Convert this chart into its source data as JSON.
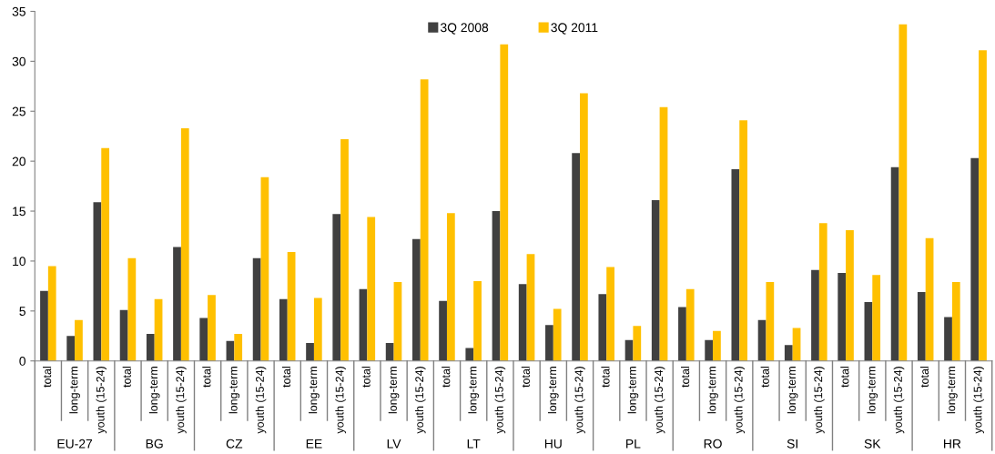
{
  "chart_data": {
    "type": "bar",
    "categories": [
      "total",
      "long-term",
      "youth (15-24)",
      "total",
      "long-term",
      "youth (15-24)",
      "total",
      "long-term",
      "youth (15-24)",
      "total",
      "long-term",
      "youth (15-24)",
      "total",
      "long-term",
      "youth (15-24)",
      "total",
      "long-term",
      "youth (15-24)",
      "total",
      "long-term",
      "youth (15-24)",
      "total",
      "long-term",
      "youth (15-24)",
      "total",
      "long-term",
      "youth (15-24)",
      "total",
      "long-term",
      "youth (15-24)",
      "total",
      "long-term",
      "youth (15-24)",
      "total",
      "long-term",
      "youth (15-24)"
    ],
    "series": [
      {
        "name": "3Q 2008",
        "color": "#404040",
        "values": [
          7.0,
          2.5,
          15.9,
          5.1,
          2.7,
          11.4,
          4.3,
          2.0,
          10.3,
          6.2,
          1.8,
          14.7,
          7.2,
          1.8,
          12.2,
          6.0,
          1.3,
          15.0,
          7.7,
          3.6,
          20.8,
          6.7,
          2.1,
          16.1,
          5.4,
          2.1,
          19.2,
          4.1,
          1.6,
          9.1,
          8.8,
          5.9,
          19.4,
          6.9,
          4.4,
          20.3
        ]
      },
      {
        "name": "3Q 2011",
        "color": "#ffc000",
        "values": [
          9.5,
          4.1,
          21.3,
          10.3,
          6.2,
          23.3,
          6.6,
          2.7,
          18.4,
          10.9,
          6.3,
          22.2,
          14.4,
          7.9,
          28.2,
          14.8,
          8.0,
          31.7,
          10.7,
          5.2,
          26.8,
          9.4,
          3.5,
          25.4,
          7.2,
          3.0,
          24.1,
          7.9,
          3.3,
          13.8,
          13.1,
          8.6,
          33.7,
          12.3,
          7.9,
          31.1
        ]
      }
    ],
    "annotations": [
      "EU-27",
      "BG",
      "CZ",
      "EE",
      "LV",
      "LT",
      "HU",
      "PL",
      "RO",
      "SI",
      "SK",
      "HR"
    ],
    "ylim": [
      0,
      35
    ],
    "yticks": [
      0,
      5,
      10,
      15,
      20,
      25,
      30,
      35
    ],
    "grid": false,
    "legend": "top"
  }
}
